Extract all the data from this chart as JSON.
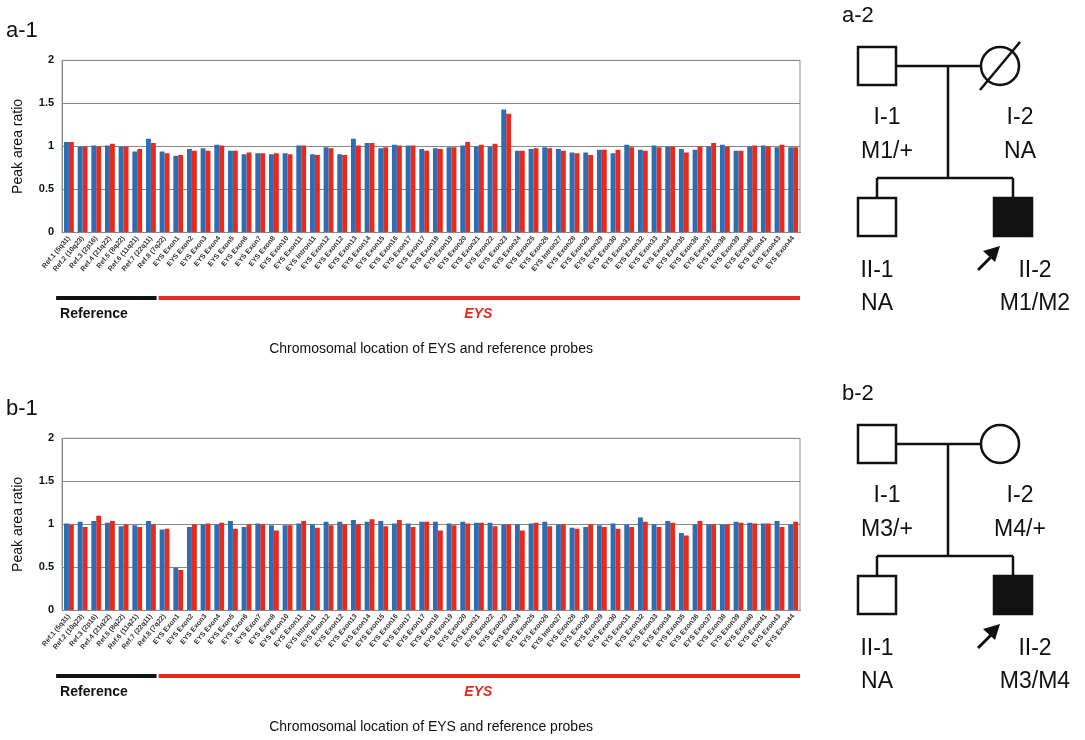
{
  "chart_data": [
    {
      "type": "bar",
      "title": "a-1",
      "xlabel": "Chromosomal location of EYS and reference probes",
      "ylabel": "Peak area ratio",
      "categories": [
        "Ref.1 (5q31)",
        "Ref.2 (10q23)",
        "Ref.3 (2p16)",
        "Ref.4 (21q22)",
        "Ref.5 (8q22)",
        "Ref.6 (11q21)",
        "Ref.7 (22q11)",
        "Ref.8 (7q22)",
        "EYS Exon1",
        "EYS Exon2",
        "EYS Exon3",
        "EYS Exon4",
        "EYS Exon5",
        "EYS Exon6",
        "EYS Exon7",
        "EYS Exon8",
        "EYS Exon10",
        "EYS Exon11",
        "EYS Intron11",
        "EYS Exon12",
        "EYS Exon12",
        "EYS Exon13",
        "EYS Exon14",
        "EYS Exon15",
        "EYS Exon16",
        "EYS Exon17",
        "EYS Exon17",
        "EYS Exon18",
        "EYS Exon19",
        "EYS Exon20",
        "EYS Exon21",
        "EYS Exon22",
        "EYS Exon23",
        "EYS Exon24",
        "EYS Exon25",
        "EYS Exon26",
        "EYS Intron27",
        "EYS Exon28",
        "EYS Exon28",
        "EYS Exon29",
        "EYS Exon30",
        "EYS Exon31",
        "EYS Exon32",
        "EYS Exon33",
        "EYS Exon34",
        "EYS Exon35",
        "EYS Exon36",
        "EYS Exon37",
        "EYS Exon38",
        "EYS Exon39",
        "EYS Exon40",
        "EYS Exon41",
        "EYS Exon43",
        "EYS Exon44"
      ],
      "series": [
        {
          "color": "#2e6db4",
          "values": [
            1.05,
            1.0,
            1.01,
            1.01,
            1.0,
            0.94,
            1.09,
            0.94,
            0.89,
            0.97,
            0.98,
            1.02,
            0.95,
            0.91,
            0.92,
            0.91,
            0.92,
            1.01,
            0.91,
            0.99,
            0.91,
            1.09,
            1.04,
            0.98,
            1.02,
            1.01,
            0.97,
            0.98,
            0.99,
            1.01,
            1.0,
            1.0,
            1.43,
            0.95,
            0.97,
            0.99,
            0.97,
            0.93,
            0.93,
            0.96,
            0.92,
            1.02,
            0.96,
            1.01,
            1.0,
            0.97,
            0.96,
            1.0,
            1.02,
            0.95,
            1.0,
            1.01,
            0.99,
            0.99
          ]
        },
        {
          "color": "#e8291c",
          "values": [
            1.05,
            1.0,
            1.0,
            1.03,
            1.0,
            0.97,
            1.04,
            0.92,
            0.9,
            0.95,
            0.95,
            1.01,
            0.95,
            0.93,
            0.92,
            0.92,
            0.91,
            1.01,
            0.9,
            0.98,
            0.9,
            1.01,
            1.04,
            0.99,
            1.01,
            1.01,
            0.95,
            0.97,
            0.99,
            1.05,
            1.02,
            1.03,
            1.38,
            0.95,
            0.98,
            0.98,
            0.95,
            0.92,
            0.9,
            0.96,
            0.96,
            0.99,
            0.95,
            0.99,
            1.0,
            0.93,
            1.0,
            1.04,
            1.0,
            0.95,
            1.01,
            1.0,
            1.02,
            0.99
          ]
        }
      ],
      "ylim": [
        0,
        2
      ],
      "yticks": [
        0,
        0.5,
        1,
        1.5,
        2
      ],
      "grid": "y",
      "legend": false,
      "annotations": [
        "Reference",
        "EYS"
      ]
    },
    {
      "type": "other",
      "title": "a-2",
      "annotations": [
        "I-1",
        "M1/+",
        "I-2",
        "NA",
        "II-1",
        "NA",
        "II-2",
        "M1/M2"
      ]
    },
    {
      "type": "bar",
      "title": "b-1",
      "xlabel": "Chromosomal location of EYS and reference probes",
      "ylabel": "Peak area ratio",
      "categories": [
        "Ref.1 (5q31)",
        "Ref.2 (10q23)",
        "Ref.3 (2p16)",
        "Ref.4 (21q22)",
        "Ref.5 (8q22)",
        "Ref.6 (11q21)",
        "Ref.7 (22q11)",
        "Ref.8 (7q22)",
        "EYS Exon1",
        "EYS Exon2",
        "EYS Exon3",
        "EYS Exon4",
        "EYS Exon5",
        "EYS Exon6",
        "EYS Exon7",
        "EYS Exon8",
        "EYS Exon10",
        "EYS Exon11",
        "EYS Intron11",
        "EYS Exon12",
        "EYS Exon12",
        "EYS Exon13",
        "EYS Exon14",
        "EYS Exon15",
        "EYS Exon16",
        "EYS Exon17",
        "EYS Exon17",
        "EYS Exon18",
        "EYS Exon19",
        "EYS Exon20",
        "EYS Exon21",
        "EYS Exon22",
        "EYS Exon23",
        "EYS Exon24",
        "EYS Exon25",
        "EYS Exon26",
        "EYS Intron27",
        "EYS Exon28",
        "EYS Exon28",
        "EYS Exon29",
        "EYS Exon30",
        "EYS Exon31",
        "EYS Exon32",
        "EYS Exon33",
        "EYS Exon34",
        "EYS Exon35",
        "EYS Exon36",
        "EYS Exon37",
        "EYS Exon38",
        "EYS Exon39",
        "EYS Exon40",
        "EYS Exon41",
        "EYS Exon43",
        "EYS Exon44"
      ],
      "series": [
        {
          "color": "#2e6db4",
          "values": [
            1.01,
            1.03,
            1.04,
            1.02,
            0.98,
            0.99,
            1.04,
            0.94,
            0.5,
            0.97,
            1.0,
            1.0,
            1.04,
            0.97,
            1.01,
            0.99,
            0.99,
            1.01,
            1.0,
            1.03,
            1.03,
            1.05,
            1.03,
            1.04,
            1.01,
            1.01,
            1.03,
            1.03,
            1.01,
            1.03,
            1.02,
            1.02,
            1.0,
            1.0,
            1.01,
            1.03,
            1.0,
            0.96,
            0.97,
            0.99,
            1.01,
            1.0,
            1.08,
            1.0,
            1.04,
            0.9,
            1.0,
            1.0,
            1.0,
            1.03,
            1.02,
            1.01,
            1.04,
            1.0
          ]
        },
        {
          "color": "#e8291c",
          "values": [
            1.0,
            0.97,
            1.1,
            1.04,
            1.0,
            0.97,
            1.0,
            0.95,
            0.47,
            1.0,
            1.01,
            1.02,
            0.95,
            1.0,
            1.0,
            0.93,
            0.99,
            1.04,
            0.96,
            0.99,
            1.0,
            1.0,
            1.06,
            0.98,
            1.05,
            0.97,
            1.03,
            0.93,
            0.99,
            1.01,
            1.02,
            0.98,
            1.0,
            0.93,
            1.02,
            0.98,
            1.0,
            0.95,
            1.0,
            0.97,
            0.95,
            0.97,
            1.03,
            0.97,
            1.02,
            0.87,
            1.04,
            1.0,
            1.0,
            1.02,
            1.01,
            1.01,
            0.97,
            1.03
          ]
        }
      ],
      "ylim": [
        0,
        2
      ],
      "yticks": [
        0,
        0.5,
        1,
        1.5,
        2
      ],
      "grid": "y",
      "legend": false,
      "annotations": [
        "Reference",
        "EYS"
      ]
    },
    {
      "type": "other",
      "title": "b-2",
      "annotations": [
        "I-1",
        "M3/+",
        "I-2",
        "M4/+",
        "II-1",
        "NA",
        "II-2",
        "M3/M4"
      ]
    }
  ]
}
